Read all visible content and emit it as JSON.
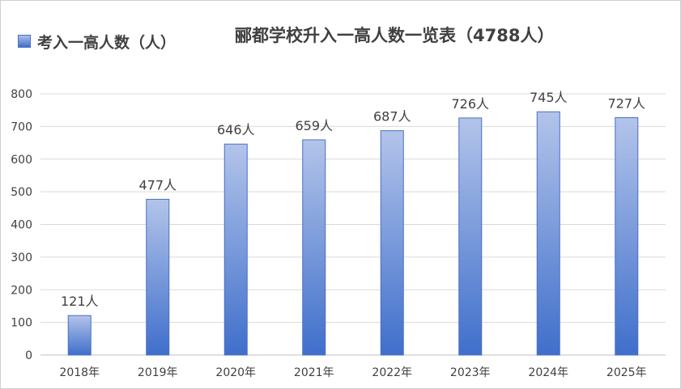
{
  "chart_data": {
    "type": "bar",
    "title": "郦都学校升入一高人数一览表（4788人）",
    "series": [
      {
        "name": "考入一高人数（人）",
        "values": [
          121,
          477,
          646,
          659,
          687,
          726,
          745,
          727
        ]
      }
    ],
    "categories": [
      "2018年",
      "2019年",
      "2020年",
      "2021年",
      "2022年",
      "2023年",
      "2024年",
      "2025年"
    ],
    "data_labels": [
      "121人",
      "477人",
      "646人",
      "659人",
      "687人",
      "726人",
      "745人",
      "727人"
    ],
    "ylim": [
      0,
      800
    ],
    "yticks": [
      "0",
      "100",
      "200",
      "300",
      "400",
      "500",
      "600",
      "700",
      "800"
    ],
    "grid": true,
    "legend_position": "top-left",
    "colors": {
      "bar_top": "#b3c4ea",
      "bar_bottom": "#3f6fcb",
      "bar_border": "#4a6fc4",
      "grid": "#d9d9d9",
      "text": "#404040"
    }
  }
}
